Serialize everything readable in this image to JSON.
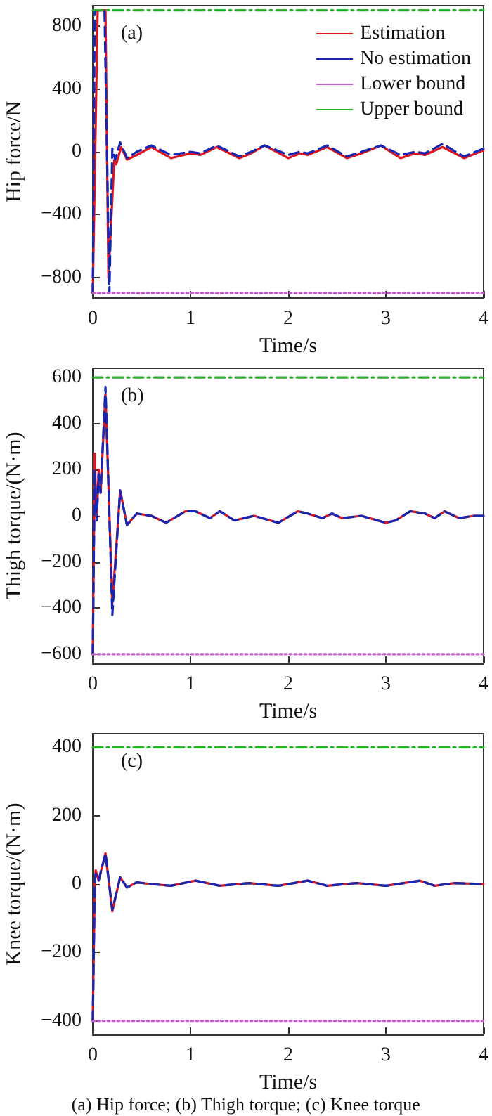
{
  "chart_data": [
    {
      "type": "line",
      "xlabel": "Time/s",
      "ylabel": "Hip force/N",
      "annotations": [
        "(a)"
      ],
      "xlim": [
        0,
        4
      ],
      "xticks": [
        0,
        1,
        2,
        3,
        4
      ],
      "ylim": [
        -930,
        930
      ],
      "yticks": [
        {
          "value": -800,
          "label": "−800"
        },
        {
          "value": -400,
          "label": "−400"
        },
        0,
        400,
        800
      ],
      "grid": false,
      "legend": "top right",
      "series": [
        {
          "name": "Estimation",
          "color": "#e0141e",
          "line_style": "solid",
          "x": [
            0,
            0.05,
            0.13,
            0.16,
            0.22,
            0.24,
            0.29,
            0.35,
            0.45,
            0.6,
            0.8,
            1.0,
            1.1,
            1.27,
            1.5,
            1.62,
            1.76,
            2.0,
            2.12,
            2.2,
            2.4,
            2.6,
            2.75,
            2.95,
            3.15,
            3.3,
            3.4,
            3.58,
            3.8,
            4
          ],
          "values": [
            -900,
            900,
            900,
            -800,
            -50,
            -80,
            30,
            -50,
            -20,
            30,
            -40,
            -10,
            -20,
            30,
            -40,
            -10,
            40,
            -40,
            -10,
            -20,
            30,
            -40,
            -10,
            40,
            -40,
            -10,
            -20,
            30,
            -40,
            10
          ]
        },
        {
          "name": "No estimation",
          "color": "#1428b4",
          "line_style": "dashed",
          "x": [
            0,
            0.02,
            0.12,
            0.17,
            0.2,
            0.23,
            0.28,
            0.35,
            0.45,
            0.6,
            0.8,
            1.0,
            1.1,
            1.27,
            1.5,
            1.62,
            1.76,
            2.0,
            2.12,
            2.2,
            2.4,
            2.6,
            2.75,
            2.95,
            3.15,
            3.3,
            3.4,
            3.58,
            3.8,
            4
          ],
          "values": [
            -900,
            900,
            900,
            -900,
            20,
            -50,
            60,
            -40,
            0,
            40,
            -20,
            0,
            -10,
            40,
            -30,
            0,
            40,
            -20,
            0,
            -10,
            40,
            -30,
            0,
            40,
            -20,
            0,
            -10,
            50,
            -30,
            20
          ]
        },
        {
          "name": "Lower bound",
          "color": "#c060c8",
          "line_style": "dotted",
          "x": [
            0,
            4
          ],
          "values": [
            -900,
            -900
          ]
        },
        {
          "name": "Upper bound",
          "color": "#22b422",
          "line_style": "dashdot",
          "x": [
            0,
            4
          ],
          "values": [
            900,
            900
          ]
        }
      ]
    },
    {
      "type": "line",
      "xlabel": "Time/s",
      "ylabel": "Thigh torque/(N·m)",
      "annotations": [
        "(b)"
      ],
      "xlim": [
        0,
        4
      ],
      "xticks": [
        0,
        1,
        2,
        3,
        4
      ],
      "ylim": [
        -640,
        640
      ],
      "yticks": [
        {
          "value": -600,
          "label": "−600"
        },
        {
          "value": -400,
          "label": "−400"
        },
        {
          "value": -200,
          "label": "−200"
        },
        0,
        200,
        400,
        600
      ],
      "grid": false,
      "series": [
        {
          "color": "#e0141e",
          "line_style": "solid",
          "x": [
            0,
            0.02,
            0.04,
            0.06,
            0.08,
            0.13,
            0.2,
            0.28,
            0.35,
            0.45,
            0.6,
            0.75,
            0.95,
            1.05,
            1.2,
            1.3,
            1.45,
            1.65,
            1.9,
            2.1,
            2.2,
            2.35,
            2.45,
            2.55,
            2.75,
            3.0,
            3.1,
            3.25,
            3.4,
            3.5,
            3.6,
            3.75,
            3.9,
            4
          ],
          "values": [
            -600,
            270,
            -20,
            200,
            100,
            530,
            -380,
            110,
            -40,
            10,
            0,
            -30,
            20,
            20,
            -10,
            20,
            -20,
            0,
            -30,
            20,
            10,
            -10,
            10,
            -10,
            0,
            -30,
            -20,
            20,
            10,
            -10,
            20,
            -10,
            0,
            0
          ]
        },
        {
          "color": "#1428b4",
          "line_style": "dashed",
          "x": [
            0,
            0.02,
            0.04,
            0.06,
            0.08,
            0.13,
            0.2,
            0.28,
            0.35,
            0.45,
            0.6,
            0.75,
            0.95,
            1.05,
            1.2,
            1.3,
            1.45,
            1.65,
            1.9,
            2.1,
            2.2,
            2.35,
            2.45,
            2.55,
            2.75,
            3.0,
            3.1,
            3.25,
            3.4,
            3.5,
            3.6,
            3.75,
            3.9,
            4
          ],
          "values": [
            -600,
            200,
            -20,
            180,
            100,
            560,
            -430,
            110,
            -40,
            10,
            0,
            -30,
            20,
            20,
            -10,
            20,
            -20,
            0,
            -30,
            20,
            10,
            -10,
            10,
            -10,
            0,
            -30,
            -20,
            20,
            10,
            -10,
            20,
            -10,
            0,
            0
          ]
        },
        {
          "color": "#c060c8",
          "line_style": "dotted",
          "x": [
            0,
            4
          ],
          "values": [
            -600,
            -600
          ]
        },
        {
          "color": "#22b422",
          "line_style": "dashdot",
          "x": [
            0,
            4
          ],
          "values": [
            600,
            600
          ]
        }
      ]
    },
    {
      "type": "line",
      "xlabel": "Time/s",
      "ylabel": "Knee torque/(N·m)",
      "annotations": [
        "(c)",
        "(a) Hip force; (b) Thigh torque; (c) Knee torque"
      ],
      "xlim": [
        0,
        4
      ],
      "xticks": [
        0,
        1,
        2,
        3,
        4
      ],
      "ylim": [
        -440,
        440
      ],
      "yticks": [
        {
          "value": -400,
          "label": "−400"
        },
        {
          "value": -200,
          "label": "−200"
        },
        0,
        200,
        400
      ],
      "grid": false,
      "series": [
        {
          "color": "#e0141e",
          "line_style": "solid",
          "x": [
            0,
            0.02,
            0.03,
            0.06,
            0.13,
            0.2,
            0.28,
            0.35,
            0.45,
            0.6,
            0.8,
            1.05,
            1.3,
            1.6,
            1.9,
            2.2,
            2.4,
            2.7,
            3.0,
            3.35,
            3.5,
            3.7,
            4
          ],
          "values": [
            -400,
            0,
            40,
            10,
            90,
            -80,
            20,
            -10,
            5,
            0,
            -5,
            10,
            -5,
            3,
            -5,
            10,
            -5,
            3,
            -5,
            10,
            -5,
            3,
            0
          ]
        },
        {
          "color": "#1428b4",
          "line_style": "dashed",
          "x": [
            0,
            0.02,
            0.03,
            0.06,
            0.13,
            0.2,
            0.28,
            0.35,
            0.45,
            0.6,
            0.8,
            1.05,
            1.3,
            1.6,
            1.9,
            2.2,
            2.4,
            2.7,
            3.0,
            3.35,
            3.5,
            3.7,
            4
          ],
          "values": [
            -400,
            0,
            30,
            10,
            90,
            -75,
            20,
            -10,
            5,
            0,
            -5,
            10,
            -5,
            3,
            -5,
            10,
            -5,
            3,
            -5,
            10,
            -5,
            3,
            0
          ]
        },
        {
          "color": "#c060c8",
          "line_style": "dotted",
          "x": [
            0,
            4
          ],
          "values": [
            -400,
            -400
          ]
        },
        {
          "color": "#22b422",
          "line_style": "dashdot",
          "x": [
            0,
            4
          ],
          "values": [
            400,
            400
          ]
        }
      ]
    }
  ]
}
